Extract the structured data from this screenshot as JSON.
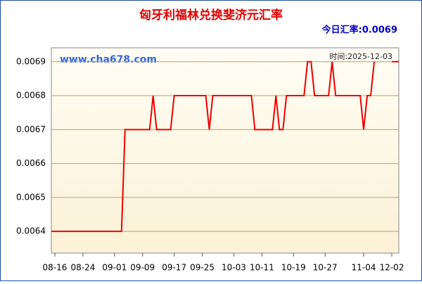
{
  "chart_data": {
    "type": "line",
    "title": "匈牙利福林兑换斐济元汇率",
    "current_rate": "今日汇率:0.0069",
    "watermark": "www.cha678.com",
    "time_label": "时间:2025-12-03",
    "categories": [
      null,
      "08-16",
      null,
      null,
      null,
      null,
      null,
      null,
      null,
      "08-24",
      null,
      null,
      null,
      null,
      null,
      null,
      null,
      null,
      "09-01",
      null,
      null,
      null,
      null,
      null,
      null,
      null,
      "09-09",
      null,
      null,
      null,
      null,
      null,
      null,
      null,
      null,
      "09-17",
      null,
      null,
      null,
      null,
      null,
      null,
      null,
      "09-25",
      null,
      null,
      null,
      null,
      null,
      null,
      null,
      null,
      "10-03",
      null,
      null,
      null,
      null,
      null,
      null,
      null,
      "10-11",
      null,
      null,
      null,
      null,
      null,
      null,
      null,
      null,
      "10-19",
      null,
      null,
      null,
      null,
      null,
      null,
      null,
      null,
      "10-27",
      null,
      null,
      null,
      null,
      null,
      null,
      null,
      null,
      null,
      null,
      "11-04",
      null,
      null,
      null,
      null,
      null,
      null,
      null,
      "12-02",
      null,
      null
    ],
    "series": [
      {
        "color": "#ee0000",
        "values": [
          0.0064,
          0.0064,
          0.0064,
          0.0064,
          0.0064,
          0.0064,
          0.0064,
          0.0064,
          0.0064,
          0.0064,
          0.0064,
          0.0064,
          0.0064,
          0.0064,
          0.0064,
          0.0064,
          0.0064,
          0.0064,
          0.0064,
          0.0064,
          0.0064,
          0.0067,
          0.0067,
          0.0067,
          0.0067,
          0.0067,
          0.0067,
          0.0067,
          0.0067,
          0.0068,
          0.0067,
          0.0067,
          0.0067,
          0.0067,
          0.0067,
          0.0068,
          0.0068,
          0.0068,
          0.0068,
          0.0068,
          0.0068,
          0.0068,
          0.0068,
          0.0068,
          0.0068,
          0.0067,
          0.0068,
          0.0068,
          0.0068,
          0.0068,
          0.0068,
          0.0068,
          0.0068,
          0.0068,
          0.0068,
          0.0068,
          0.0068,
          0.0068,
          0.0067,
          0.0067,
          0.0067,
          0.0067,
          0.0067,
          0.0067,
          0.0068,
          0.0067,
          0.0067,
          0.0068,
          0.0068,
          0.0068,
          0.0068,
          0.0068,
          0.0068,
          0.0069,
          0.0069,
          0.0068,
          0.0068,
          0.0068,
          0.0068,
          0.0068,
          0.0069,
          0.0068,
          0.0068,
          0.0068,
          0.0068,
          0.0068,
          0.0068,
          0.0068,
          0.0068,
          0.0067,
          0.0068,
          0.0068,
          0.0069,
          null,
          null,
          null,
          null,
          0.0069,
          0.0069,
          0.0069
        ]
      }
    ],
    "ylim": [
      0.006336,
      0.006941
    ],
    "yticks": [
      0.0064,
      0.0065,
      0.0066,
      0.0067,
      0.0068,
      0.0069
    ],
    "grid": true
  }
}
